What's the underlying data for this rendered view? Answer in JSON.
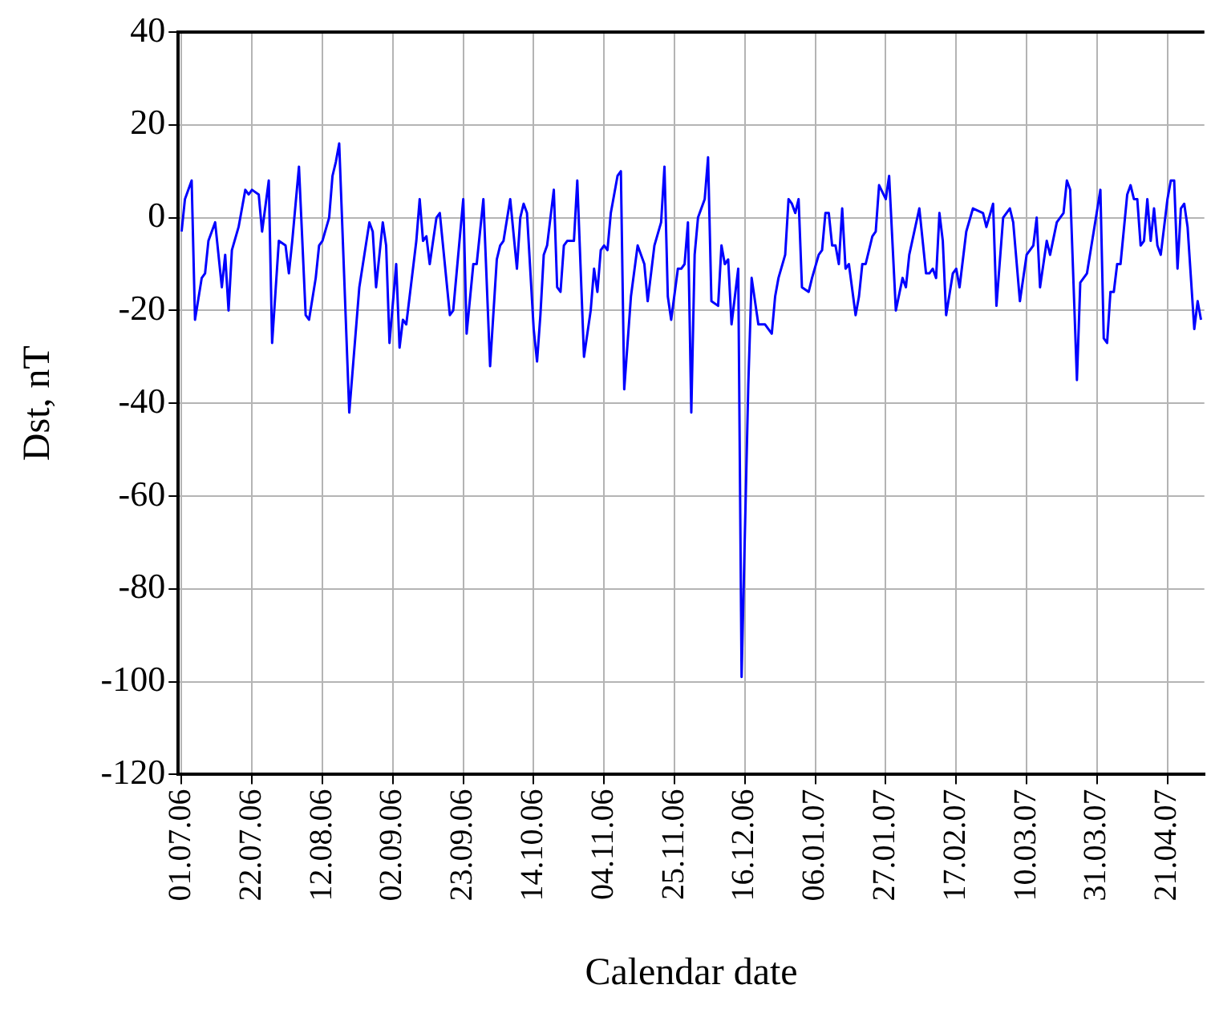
{
  "chart_data": {
    "type": "line",
    "xlabel": "Calendar date",
    "ylabel": "Dst, nT",
    "x": [
      "2006-07-01",
      "2006-07-02",
      "2006-07-04",
      "2006-07-05",
      "2006-07-07",
      "2006-07-08",
      "2006-07-09",
      "2006-07-11",
      "2006-07-13",
      "2006-07-14",
      "2006-07-15",
      "2006-07-16",
      "2006-07-18",
      "2006-07-20",
      "2006-07-21",
      "2006-07-22",
      "2006-07-24",
      "2006-07-25",
      "2006-07-27",
      "2006-07-28",
      "2006-07-30",
      "2006-08-01",
      "2006-08-02",
      "2006-08-03",
      "2006-08-05",
      "2006-08-07",
      "2006-08-08",
      "2006-08-10",
      "2006-08-11",
      "2006-08-12",
      "2006-08-14",
      "2006-08-15",
      "2006-08-16",
      "2006-08-17",
      "2006-08-20",
      "2006-08-23",
      "2006-08-26",
      "2006-08-27",
      "2006-08-28",
      "2006-08-30",
      "2006-08-31",
      "2006-09-01",
      "2006-09-03",
      "2006-09-04",
      "2006-09-05",
      "2006-09-06",
      "2006-09-09",
      "2006-09-10",
      "2006-09-11",
      "2006-09-12",
      "2006-09-13",
      "2006-09-15",
      "2006-09-16",
      "2006-09-19",
      "2006-09-20",
      "2006-09-23",
      "2006-09-24",
      "2006-09-26",
      "2006-09-27",
      "2006-09-29",
      "2006-10-01",
      "2006-10-03",
      "2006-10-04",
      "2006-10-05",
      "2006-10-07",
      "2006-10-09",
      "2006-10-10",
      "2006-10-11",
      "2006-10-12",
      "2006-10-14",
      "2006-10-15",
      "2006-10-16",
      "2006-10-17",
      "2006-10-18",
      "2006-10-20",
      "2006-10-21",
      "2006-10-22",
      "2006-10-23",
      "2006-10-24",
      "2006-10-26",
      "2006-10-27",
      "2006-10-29",
      "2006-10-31",
      "2006-11-01",
      "2006-11-02",
      "2006-11-03",
      "2006-11-04",
      "2006-11-05",
      "2006-11-06",
      "2006-11-08",
      "2006-11-09",
      "2006-11-10",
      "2006-11-12",
      "2006-11-14",
      "2006-11-16",
      "2006-11-17",
      "2006-11-19",
      "2006-11-21",
      "2006-11-22",
      "2006-11-23",
      "2006-11-24",
      "2006-11-26",
      "2006-11-27",
      "2006-11-28",
      "2006-11-29",
      "2006-11-30",
      "2006-12-01",
      "2006-12-02",
      "2006-12-04",
      "2006-12-05",
      "2006-12-06",
      "2006-12-08",
      "2006-12-09",
      "2006-12-10",
      "2006-12-11",
      "2006-12-12",
      "2006-12-14",
      "2006-12-15",
      "2006-12-17",
      "2006-12-18",
      "2006-12-20",
      "2006-12-22",
      "2006-12-23",
      "2006-12-24",
      "2006-12-25",
      "2006-12-26",
      "2006-12-28",
      "2006-12-29",
      "2006-12-30",
      "2006-12-31",
      "2007-01-01",
      "2007-01-02",
      "2007-01-04",
      "2007-01-05",
      "2007-01-07",
      "2007-01-08",
      "2007-01-09",
      "2007-01-10",
      "2007-01-11",
      "2007-01-12",
      "2007-01-13",
      "2007-01-14",
      "2007-01-15",
      "2007-01-16",
      "2007-01-18",
      "2007-01-19",
      "2007-01-20",
      "2007-01-21",
      "2007-01-23",
      "2007-01-24",
      "2007-01-25",
      "2007-01-27",
      "2007-01-28",
      "2007-01-30",
      "2007-02-01",
      "2007-02-02",
      "2007-02-03",
      "2007-02-06",
      "2007-02-08",
      "2007-02-09",
      "2007-02-10",
      "2007-02-11",
      "2007-02-12",
      "2007-02-13",
      "2007-02-14",
      "2007-02-16",
      "2007-02-17",
      "2007-02-18",
      "2007-02-20",
      "2007-02-22",
      "2007-02-25",
      "2007-02-26",
      "2007-02-28",
      "2007-03-01",
      "2007-03-03",
      "2007-03-05",
      "2007-03-06",
      "2007-03-08",
      "2007-03-10",
      "2007-03-12",
      "2007-03-13",
      "2007-03-14",
      "2007-03-16",
      "2007-03-17",
      "2007-03-19",
      "2007-03-21",
      "2007-03-22",
      "2007-03-23",
      "2007-03-25",
      "2007-03-26",
      "2007-03-28",
      "2007-03-30",
      "2007-04-01",
      "2007-04-02",
      "2007-04-03",
      "2007-04-04",
      "2007-04-05",
      "2007-04-06",
      "2007-04-07",
      "2007-04-09",
      "2007-04-10",
      "2007-04-11",
      "2007-04-12",
      "2007-04-13",
      "2007-04-14",
      "2007-04-15",
      "2007-04-16",
      "2007-04-17",
      "2007-04-18",
      "2007-04-19",
      "2007-04-21",
      "2007-04-22",
      "2007-04-23",
      "2007-04-24",
      "2007-04-25",
      "2007-04-26",
      "2007-04-27",
      "2007-04-29",
      "2007-04-30",
      "2007-05-01"
    ],
    "series": [
      {
        "color": "#0000ff",
        "values": [
          -3,
          4,
          8,
          -22,
          -13,
          -12,
          -5,
          -1,
          -15,
          -8,
          -20,
          -7,
          -2,
          6,
          5,
          6,
          5,
          -3,
          8,
          -27,
          -5,
          -6,
          -12,
          -5,
          11,
          -21,
          -22,
          -13,
          -6,
          -5,
          0,
          9,
          12,
          16,
          -42,
          -15,
          -1,
          -3,
          -15,
          -1,
          -6,
          -27,
          -10,
          -28,
          -22,
          -23,
          -5,
          4,
          -5,
          -4,
          -10,
          0,
          1,
          -21,
          -20,
          4,
          -25,
          -10,
          -10,
          4,
          -32,
          -9,
          -6,
          -5,
          4,
          -11,
          0,
          3,
          1,
          -24,
          -31,
          -21,
          -8,
          -6,
          6,
          -15,
          -16,
          -6,
          -5,
          -5,
          8,
          -30,
          -20,
          -11,
          -16,
          -7,
          -6,
          -7,
          1,
          9,
          10,
          -37,
          -17,
          -6,
          -10,
          -18,
          -6,
          -1,
          11,
          -17,
          -22,
          -11,
          -11,
          -10,
          -1,
          -42,
          -8,
          0,
          4,
          13,
          -18,
          -19,
          -6,
          -10,
          -9,
          -23,
          -11,
          -99,
          -36,
          -13,
          -23,
          -23,
          -24,
          -25,
          -17,
          -13,
          -8,
          4,
          3,
          1,
          4,
          -15,
          -16,
          -13,
          -8,
          -7,
          1,
          1,
          -6,
          -6,
          -10,
          2,
          -11,
          -10,
          -21,
          -17,
          -10,
          -10,
          -4,
          -3,
          7,
          4,
          9,
          -20,
          -13,
          -15,
          -8,
          2,
          -12,
          -12,
          -11,
          -13,
          1,
          -5,
          -21,
          -12,
          -11,
          -15,
          -3,
          2,
          1,
          -2,
          3,
          -19,
          0,
          2,
          -1,
          -18,
          -8,
          -6,
          0,
          -15,
          -5,
          -8,
          -1,
          1,
          8,
          6,
          -35,
          -14,
          -12,
          -3,
          6,
          -26,
          -27,
          -16,
          -16,
          -10,
          -10,
          5,
          7,
          4,
          4,
          -6,
          -5,
          4,
          -5,
          2,
          -6,
          -8,
          4,
          8,
          8,
          -11,
          2,
          3,
          -2,
          -24,
          -18,
          -22
        ]
      }
    ],
    "xlim": [
      "2006-06-30",
      "2007-05-02"
    ],
    "xticks": [
      {
        "value": "2006-07-01",
        "label": "01.07.06"
      },
      {
        "value": "2006-07-22",
        "label": "22.07.06"
      },
      {
        "value": "2006-08-12",
        "label": "12.08.06"
      },
      {
        "value": "2006-09-02",
        "label": "02.09.06"
      },
      {
        "value": "2006-09-23",
        "label": "23.09.06"
      },
      {
        "value": "2006-10-14",
        "label": "14.10.06"
      },
      {
        "value": "2006-11-04",
        "label": "04.11.06"
      },
      {
        "value": "2006-11-25",
        "label": "25.11.06"
      },
      {
        "value": "2006-12-16",
        "label": "16.12.06"
      },
      {
        "value": "2007-01-06",
        "label": "06.01.07"
      },
      {
        "value": "2007-01-27",
        "label": "27.01.07"
      },
      {
        "value": "2007-02-17",
        "label": "17.02.07"
      },
      {
        "value": "2007-03-10",
        "label": "10.03.07"
      },
      {
        "value": "2007-03-31",
        "label": "31.03.07"
      },
      {
        "value": "2007-04-21",
        "label": "21.04.07"
      }
    ],
    "ylim": [
      -120,
      40
    ],
    "yticks": [
      -120,
      -100,
      -80,
      -60,
      -40,
      -20,
      0,
      20,
      40
    ],
    "grid": true,
    "marker": "none",
    "line_style": "solid",
    "legend": false
  }
}
